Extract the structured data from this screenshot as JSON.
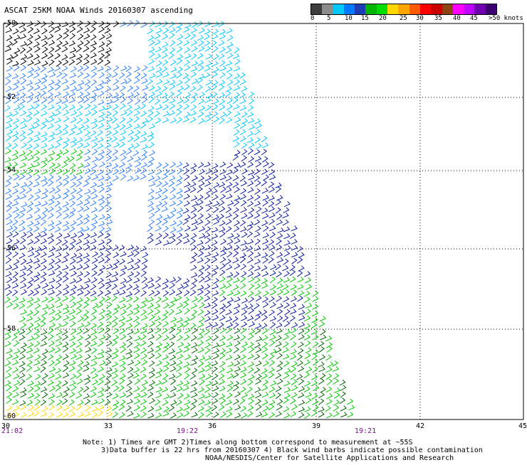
{
  "title": "ASCAT 25KM NOAA Winds 20160307 ascending",
  "legend": {
    "labels": [
      "0",
      "5",
      "10",
      "15",
      "20",
      "25",
      "30",
      "35",
      "40",
      "45",
      ">50 knots"
    ],
    "colors": [
      "#3c3c3c",
      "#8c8c8c",
      "#00c8ff",
      "#0078ff",
      "#1e3cb4",
      "#00b400",
      "#00dc00",
      "#ffd700",
      "#ffa500",
      "#ff5a00",
      "#ff0000",
      "#c80000",
      "#8b4513",
      "#ff00ff",
      "#c000ff",
      "#7000b0",
      "#3c0070"
    ]
  },
  "axes": {
    "lon_ticks": [
      "30",
      "33",
      "36",
      "39",
      "42",
      "45"
    ],
    "lat_ticks": [
      "-50",
      "-52",
      "-54",
      "-56",
      "-58",
      "-60"
    ]
  },
  "times": {
    "left": "21:02",
    "mid": "19:22",
    "right": "19:21"
  },
  "notes": {
    "line1": "Note: 1) Times are GMT 2)Times along bottom correspond to measurement at ~55S",
    "line2": "3)Data buffer is 22 hrs from 20160307 4) Black wind barbs indicate possible contamination",
    "line3": "NOAA/NESDIS/Center for Satellite Applications and Research"
  },
  "barb_colors": {
    "contaminated": "#000000",
    "cyan": "#00c8ff",
    "light_blue": "#2a7fff",
    "dark_blue": "#0a1aa0",
    "green": "#00c800",
    "dark_green": "#006400",
    "yellow": "#ffd700"
  }
}
